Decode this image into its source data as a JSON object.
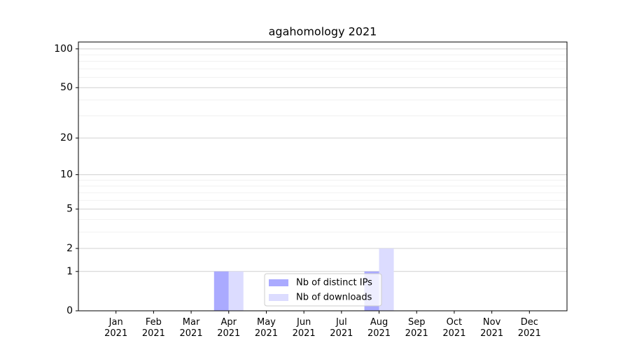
{
  "chart_data": {
    "type": "bar",
    "title": "agahomology 2021",
    "categories": [
      "Jan 2021",
      "Feb 2021",
      "Mar 2021",
      "Apr 2021",
      "May 2021",
      "Jun 2021",
      "Jul 2021",
      "Aug 2021",
      "Sep 2021",
      "Oct 2021",
      "Nov 2021",
      "Dec 2021"
    ],
    "series": [
      {
        "name": "Nb of distinct IPs",
        "color": "#aaaaff",
        "values": [
          0,
          0,
          0,
          1,
          0,
          0,
          0,
          1,
          0,
          0,
          0,
          0
        ]
      },
      {
        "name": "Nb of downloads",
        "color": "#dcdcff",
        "values": [
          0,
          0,
          0,
          1,
          0,
          0,
          0,
          2,
          0,
          0,
          0,
          0
        ]
      }
    ],
    "yscale": "log1p",
    "ylim": [
      0,
      113
    ],
    "yticks": [
      0,
      1,
      2,
      5,
      10,
      20,
      50,
      100
    ],
    "yminorticks": [
      3,
      4,
      6,
      7,
      8,
      9,
      30,
      40,
      60,
      70,
      80,
      90
    ],
    "grid": true,
    "legend": "lower center"
  }
}
